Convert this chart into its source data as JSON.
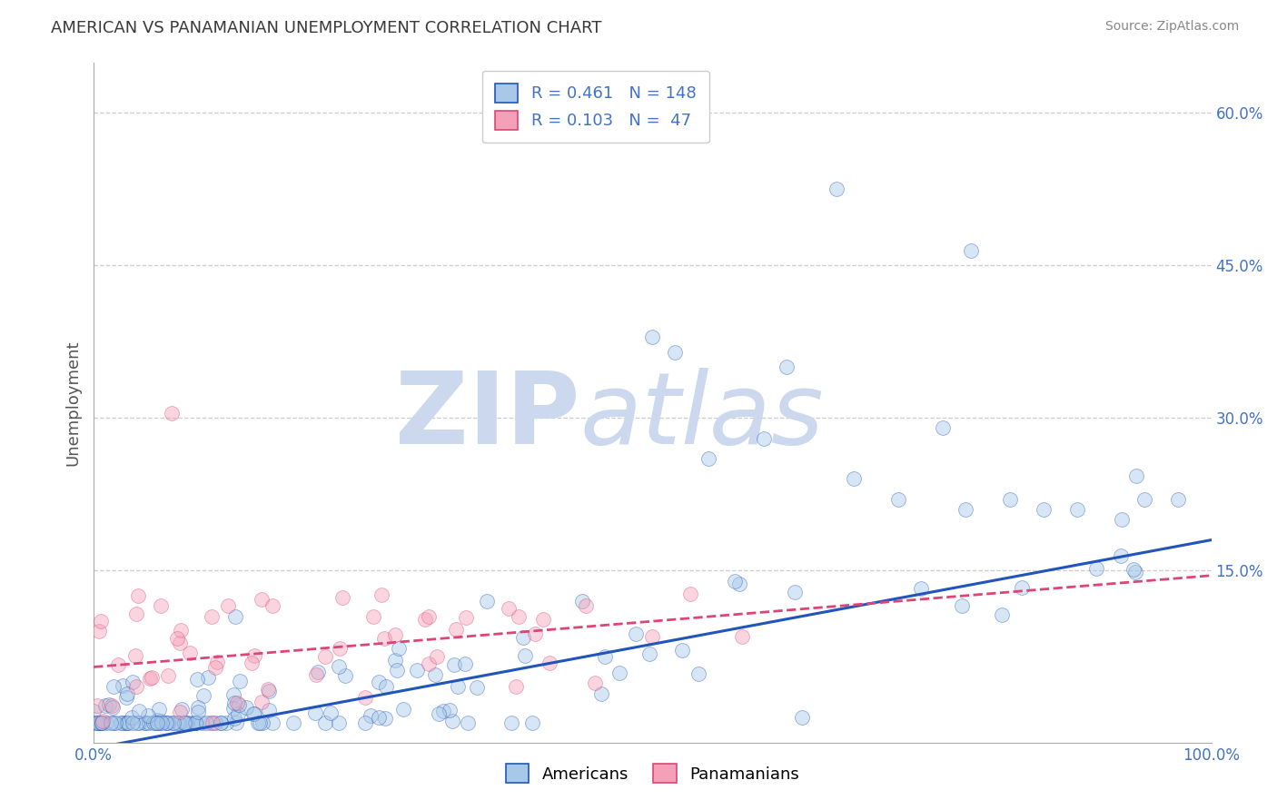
{
  "title": "AMERICAN VS PANAMANIAN UNEMPLOYMENT CORRELATION CHART",
  "source_text": "Source: ZipAtlas.com",
  "xlabel": "",
  "ylabel": "Unemployment",
  "xlim": [
    0.0,
    1.0
  ],
  "ylim": [
    -0.02,
    0.65
  ],
  "xticks": [
    0.0,
    0.1,
    0.2,
    0.3,
    0.4,
    0.5,
    0.6,
    0.7,
    0.8,
    0.9,
    1.0
  ],
  "ytick_positions": [
    0.0,
    0.15,
    0.3,
    0.45,
    0.6
  ],
  "ytick_labels": [
    "",
    "15.0%",
    "30.0%",
    "45.0%",
    "60.0%"
  ],
  "blue_color": "#a8c8e8",
  "pink_color": "#f4a0b8",
  "blue_line_color": "#2255bb",
  "pink_line_color": "#dd4477",
  "title_color": "#3a3a3a",
  "grid_color": "#cccccc",
  "watermark_color": "#ccd8ee",
  "legend_label1": "Americans",
  "legend_label2": "Panamanians",
  "blue_R": 0.461,
  "blue_N": 148,
  "pink_R": 0.103,
  "pink_N": 47,
  "blue_intercept": -0.025,
  "blue_slope": 0.205,
  "pink_intercept": 0.055,
  "pink_slope": 0.09,
  "marker_size": 130,
  "alpha_scatter": 0.45,
  "background_color": "#ffffff",
  "tick_label_color": "#4472c4",
  "ylabel_color": "#555555"
}
